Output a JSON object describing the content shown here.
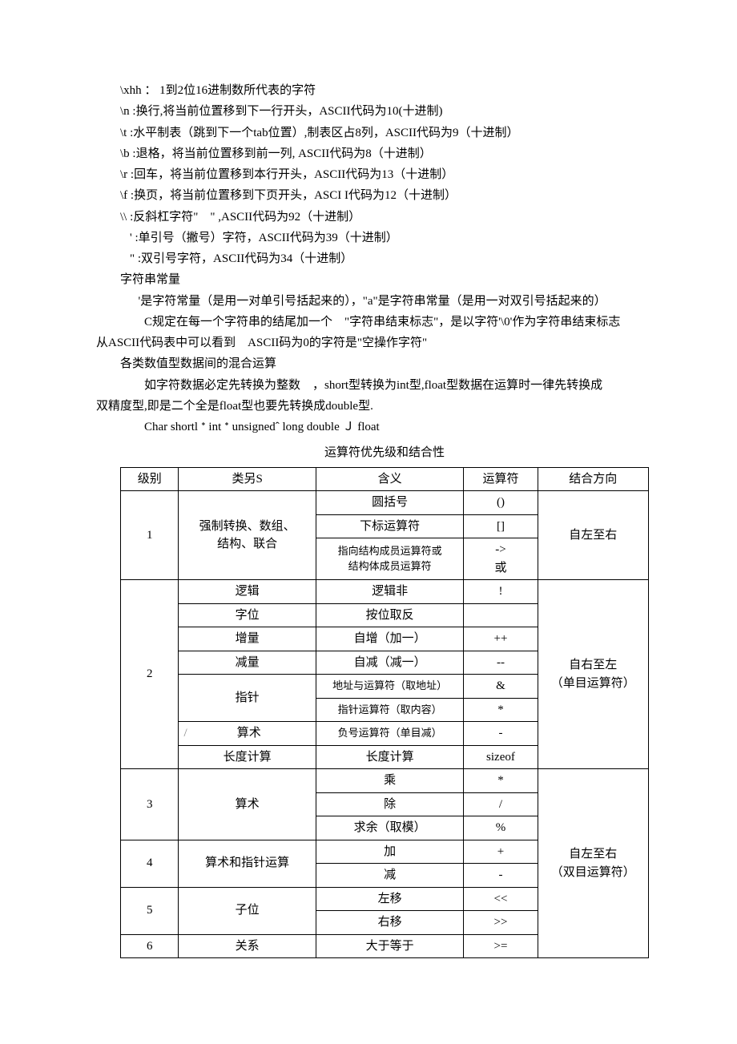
{
  "paragraphs": {
    "l1": "\\xhh ： 1到2位16进制数所代表的字符",
    "l2": "\\n :换行,将当前位置移到下一行开头，ASCII代码为10(十进制)",
    "l3": "\\t :水平制表（跳到下一个tab位置）,制表区占8列，ASCII代码为9（十进制）",
    "l4": "\\b :退格，将当前位置移到前一列, ASCII代码为8（十进制）",
    "l5": "\\r :回车，将当前位置移到本行开头，ASCII代码为13（十进制）",
    "l6": "\\f :换页，将当前位置移到下页开头，ASCI I代码为12（十进制）",
    "l7": "\\\\ :反斜杠字符\"　\" ,ASCII代码为92（十进制）",
    "l8": "' :单引号（撇号）字符，ASCII代码为39（十进制）",
    "l9": "\" :双引号字符，ASCII代码为34（十进制）",
    "l10": "字符串常量",
    "l11": "'是字符常量（是用一对单引号括起来的），\"a\"是字符串常量（是用一对双引号括起来的）",
    "l12a": "C规定在每一个字符串的结尾加一个　\"字符串结束标志\"，是以字符'\\0'作为字符串结束标志",
    "l12b": "从ASCII代码表中可以看到　ASCII码为0的字符是\"空操作字符\"",
    "l13": "各类数值型数据间的混合运算",
    "l14a": "如字符数据必定先转换为整数　，short型转换为int型,float型数据在运算时一律先转换成",
    "l14b": "双精度型,即是二个全是float型也要先转换成double型.",
    "l15": "Char shortl ᐩ int ᐩ unsignedˆ long double Ｊ float",
    "title": "运算符优先级和结合性"
  },
  "table": {
    "header": {
      "c1": "级别",
      "c2": "类另S",
      "c3": "含义",
      "c4": "运算符",
      "c5": "结合方向"
    },
    "rows": {
      "r1": {
        "level": "1",
        "cat": "强制转换、数组、\n结构、联合",
        "m1": "圆括号",
        "o1": "()",
        "m2": "下标运算符",
        "o2": "[]",
        "m3": "指向结构成员运算符或\n结构体成员运算符",
        "o3": "->\n或",
        "dir": "自左至右"
      },
      "r2": {
        "level": "2",
        "cat1": "逻辑",
        "m1": "逻辑非",
        "o1": "!",
        "cat2": "字位",
        "m2": "按位取反",
        "o2": "",
        "cat3": "增量",
        "m3": "自增（加一）",
        "o3": "++",
        "cat4": "减量",
        "m4": "自减（减一）",
        "o4": "--",
        "cat5": "指针",
        "m5": "地址与运算符（取地址）",
        "o5": "&",
        "m6": "指针运算符（取内容）",
        "o6": "*",
        "cat7": "算术",
        "m7": "负号运算符（单目减）",
        "o7": "-",
        "cat8": "长度计算",
        "m8": "长度计算",
        "o8": "sizeof",
        "dir": "自右至左\n（单目运算符）",
        "slash": "/"
      },
      "r3": {
        "level": "3",
        "cat": "算术",
        "m1": "乘",
        "o1": "*",
        "m2": "除",
        "o2": "/",
        "m3": "求余（取模）",
        "o3": "%"
      },
      "r4": {
        "level": "4",
        "cat": "算术和指针运算",
        "m1": "加",
        "o1": "+",
        "m2": "减",
        "o2": "-"
      },
      "r5": {
        "level": "5",
        "cat": "子位",
        "m1": "左移",
        "o1": "<<",
        "m2": "右移",
        "o2": ">>"
      },
      "r6": {
        "level": "6",
        "cat": "关系",
        "m1": "大于等于",
        "o1": ">="
      },
      "dir_3_6": "自左至右\n（双目运算符）"
    }
  }
}
